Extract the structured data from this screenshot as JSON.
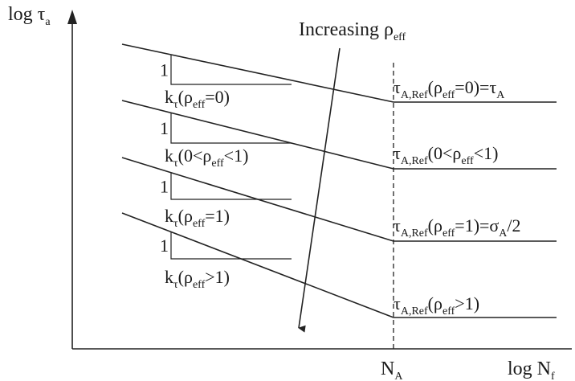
{
  "figure": {
    "axes": {
      "y_label": {
        "main": "log τ",
        "sub": "a"
      },
      "x_label": {
        "main": "log N",
        "sub": "f"
      },
      "knee_label": {
        "main": "N",
        "sub": "A"
      }
    },
    "trend_arrow": {
      "label": {
        "main": "Increasing ρ",
        "sub": "eff"
      }
    },
    "curves": [
      {
        "slope_rise": "1",
        "slope_label": [
          {
            "t": "k",
            "sub": false
          },
          {
            "t": "τ",
            "sub": true
          },
          {
            "t": "(ρ",
            "sub": false
          },
          {
            "t": "eff",
            "sub": true
          },
          {
            "t": "=0)",
            "sub": false
          }
        ],
        "ref_label": [
          {
            "t": "τ",
            "sub": false
          },
          {
            "t": "A,Ref",
            "sub": true
          },
          {
            "t": "(ρ",
            "sub": false
          },
          {
            "t": "eff",
            "sub": true
          },
          {
            "t": "=0)=τ",
            "sub": false
          },
          {
            "t": "A",
            "sub": true
          }
        ]
      },
      {
        "slope_rise": "1",
        "slope_label": [
          {
            "t": "k",
            "sub": false
          },
          {
            "t": "τ",
            "sub": true
          },
          {
            "t": "(0<ρ",
            "sub": false
          },
          {
            "t": "eff",
            "sub": true
          },
          {
            "t": "<1)",
            "sub": false
          }
        ],
        "ref_label": [
          {
            "t": "τ",
            "sub": false
          },
          {
            "t": "A,Ref",
            "sub": true
          },
          {
            "t": "(0<ρ",
            "sub": false
          },
          {
            "t": "eff",
            "sub": true
          },
          {
            "t": "<1)",
            "sub": false
          }
        ]
      },
      {
        "slope_rise": "1",
        "slope_label": [
          {
            "t": "k",
            "sub": false
          },
          {
            "t": "τ",
            "sub": true
          },
          {
            "t": "(ρ",
            "sub": false
          },
          {
            "t": "eff",
            "sub": true
          },
          {
            "t": "=1)",
            "sub": false
          }
        ],
        "ref_label": [
          {
            "t": "τ",
            "sub": false
          },
          {
            "t": "A,Ref",
            "sub": true
          },
          {
            "t": "(ρ",
            "sub": false
          },
          {
            "t": "eff",
            "sub": true
          },
          {
            "t": "=1)=σ",
            "sub": false
          },
          {
            "t": "A",
            "sub": true
          },
          {
            "t": "/2",
            "sub": false
          }
        ]
      },
      {
        "slope_rise": "1",
        "slope_label": [
          {
            "t": "k",
            "sub": false
          },
          {
            "t": "τ",
            "sub": true
          },
          {
            "t": "(ρ",
            "sub": false
          },
          {
            "t": "eff",
            "sub": true
          },
          {
            "t": ">1)",
            "sub": false
          }
        ],
        "ref_label": [
          {
            "t": "τ",
            "sub": false
          },
          {
            "t": "A,Ref",
            "sub": true
          },
          {
            "t": "(ρ",
            "sub": false
          },
          {
            "t": "eff",
            "sub": true
          },
          {
            "t": ">1)",
            "sub": false
          }
        ]
      }
    ]
  }
}
